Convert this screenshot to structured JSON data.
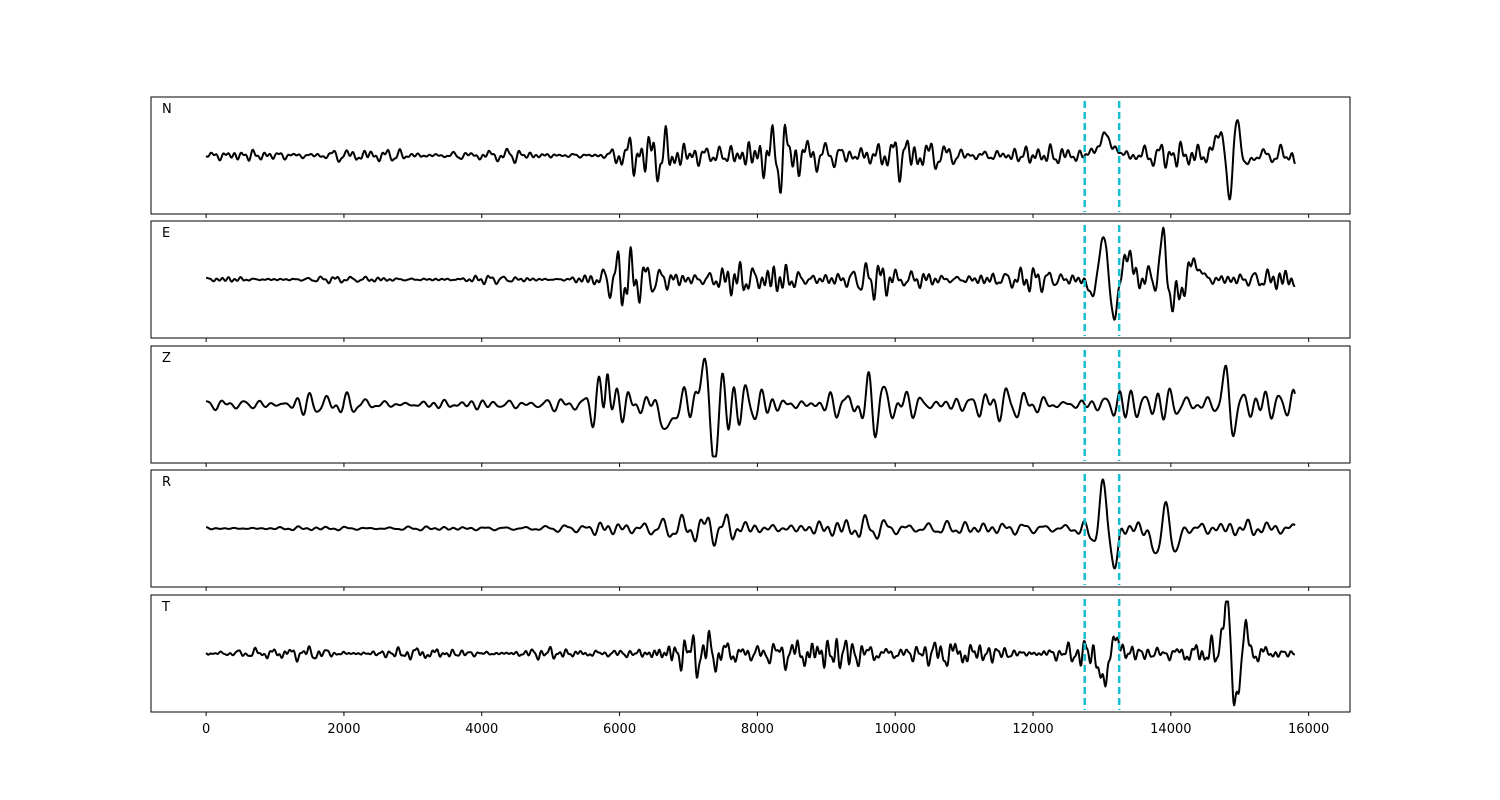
{
  "chart_data": {
    "type": "line",
    "xlim": [
      -800,
      16600
    ],
    "xticks": [
      0,
      2000,
      4000,
      6000,
      8000,
      10000,
      12000,
      14000,
      16000
    ],
    "tick_labels": [
      "0",
      "2000",
      "4000",
      "6000",
      "8000",
      "10000",
      "12000",
      "14000",
      "16000"
    ],
    "x_start": 0,
    "x_end": 15800,
    "line_color": "#000000",
    "marker_color": "#17becf",
    "markers": [
      12750,
      13250
    ],
    "channels": [
      {
        "name": "N",
        "envelope": [
          [
            0,
            0.1
          ],
          [
            1200,
            0.15
          ],
          [
            3000,
            0.12
          ],
          [
            5800,
            0.1
          ],
          [
            6000,
            0.3
          ],
          [
            6500,
            0.55
          ],
          [
            7200,
            0.6
          ],
          [
            7600,
            0.45
          ],
          [
            8000,
            0.55
          ],
          [
            9500,
            0.45
          ],
          [
            11000,
            0.25
          ],
          [
            12700,
            0.2
          ],
          [
            13000,
            0.3
          ],
          [
            13500,
            0.25
          ],
          [
            14400,
            0.3
          ],
          [
            15200,
            0.25
          ],
          [
            15800,
            0.2
          ]
        ],
        "bursts": [
          [
            13050,
            0.35,
            150
          ],
          [
            14720,
            0.55,
            90
          ],
          [
            14850,
            -1.0,
            70
          ],
          [
            14960,
            0.85,
            80
          ],
          [
            15060,
            -0.3,
            90
          ]
        ]
      },
      {
        "name": "E",
        "envelope": [
          [
            0,
            0.06
          ],
          [
            3000,
            0.06
          ],
          [
            5200,
            0.08
          ],
          [
            5600,
            0.2
          ],
          [
            6000,
            0.45
          ],
          [
            6600,
            0.4
          ],
          [
            7200,
            0.35
          ],
          [
            8000,
            0.4
          ],
          [
            9500,
            0.3
          ],
          [
            11000,
            0.2
          ],
          [
            12500,
            0.22
          ],
          [
            12800,
            0.3
          ],
          [
            13500,
            0.3
          ],
          [
            14200,
            0.35
          ],
          [
            15000,
            0.3
          ],
          [
            15800,
            0.2
          ]
        ],
        "bursts": [
          [
            12880,
            -0.4,
            90
          ],
          [
            13030,
            0.9,
            110
          ],
          [
            13170,
            -0.95,
            90
          ],
          [
            13350,
            0.5,
            110
          ],
          [
            13900,
            0.6,
            90
          ],
          [
            14050,
            -0.6,
            80
          ],
          [
            14360,
            0.35,
            90
          ]
        ]
      },
      {
        "name": "Z",
        "envelope": [
          [
            0,
            0.1
          ],
          [
            1400,
            0.25
          ],
          [
            2500,
            0.2
          ],
          [
            4000,
            0.15
          ],
          [
            5500,
            0.2
          ],
          [
            5800,
            0.8
          ],
          [
            6500,
            0.7
          ],
          [
            7200,
            0.75
          ],
          [
            7600,
            0.55
          ],
          [
            8600,
            0.45
          ],
          [
            10000,
            0.45
          ],
          [
            11500,
            0.35
          ],
          [
            12800,
            0.3
          ],
          [
            14000,
            0.4
          ],
          [
            14800,
            0.45
          ],
          [
            15800,
            0.3
          ]
        ],
        "bursts": [
          [
            5820,
            0.7,
            40
          ],
          [
            6690,
            -0.7,
            70
          ],
          [
            7190,
            0.85,
            60
          ],
          [
            7370,
            -0.6,
            80
          ],
          [
            14800,
            0.55,
            70
          ],
          [
            14900,
            -0.4,
            70
          ]
        ]
      },
      {
        "name": "R",
        "envelope": [
          [
            0,
            0.06
          ],
          [
            5500,
            0.07
          ],
          [
            5800,
            0.35
          ],
          [
            6500,
            0.4
          ],
          [
            7500,
            0.35
          ],
          [
            8000,
            0.35
          ],
          [
            9500,
            0.3
          ],
          [
            11000,
            0.2
          ],
          [
            12500,
            0.18
          ],
          [
            12800,
            0.3
          ],
          [
            13500,
            0.3
          ],
          [
            14000,
            0.35
          ],
          [
            15000,
            0.25
          ],
          [
            15800,
            0.2
          ]
        ],
        "bursts": [
          [
            12880,
            -0.3,
            90
          ],
          [
            13020,
            0.9,
            100
          ],
          [
            13150,
            -0.75,
            100
          ],
          [
            13800,
            -0.6,
            90
          ],
          [
            13920,
            0.6,
            80
          ],
          [
            14060,
            -0.5,
            80
          ]
        ]
      },
      {
        "name": "T",
        "envelope": [
          [
            0,
            0.1
          ],
          [
            1500,
            0.12
          ],
          [
            3000,
            0.12
          ],
          [
            5800,
            0.1
          ],
          [
            6000,
            0.2
          ],
          [
            7200,
            0.35
          ],
          [
            8000,
            0.4
          ],
          [
            9400,
            0.35
          ],
          [
            10000,
            0.3
          ],
          [
            12500,
            0.2
          ],
          [
            12800,
            0.3
          ],
          [
            14200,
            0.3
          ],
          [
            15000,
            0.3
          ],
          [
            15800,
            0.2
          ]
        ],
        "bursts": [
          [
            13030,
            -0.55,
            90
          ],
          [
            13200,
            0.3,
            90
          ],
          [
            14800,
            1.0,
            70
          ],
          [
            14940,
            -0.85,
            80
          ],
          [
            15080,
            0.3,
            90
          ]
        ]
      }
    ]
  }
}
